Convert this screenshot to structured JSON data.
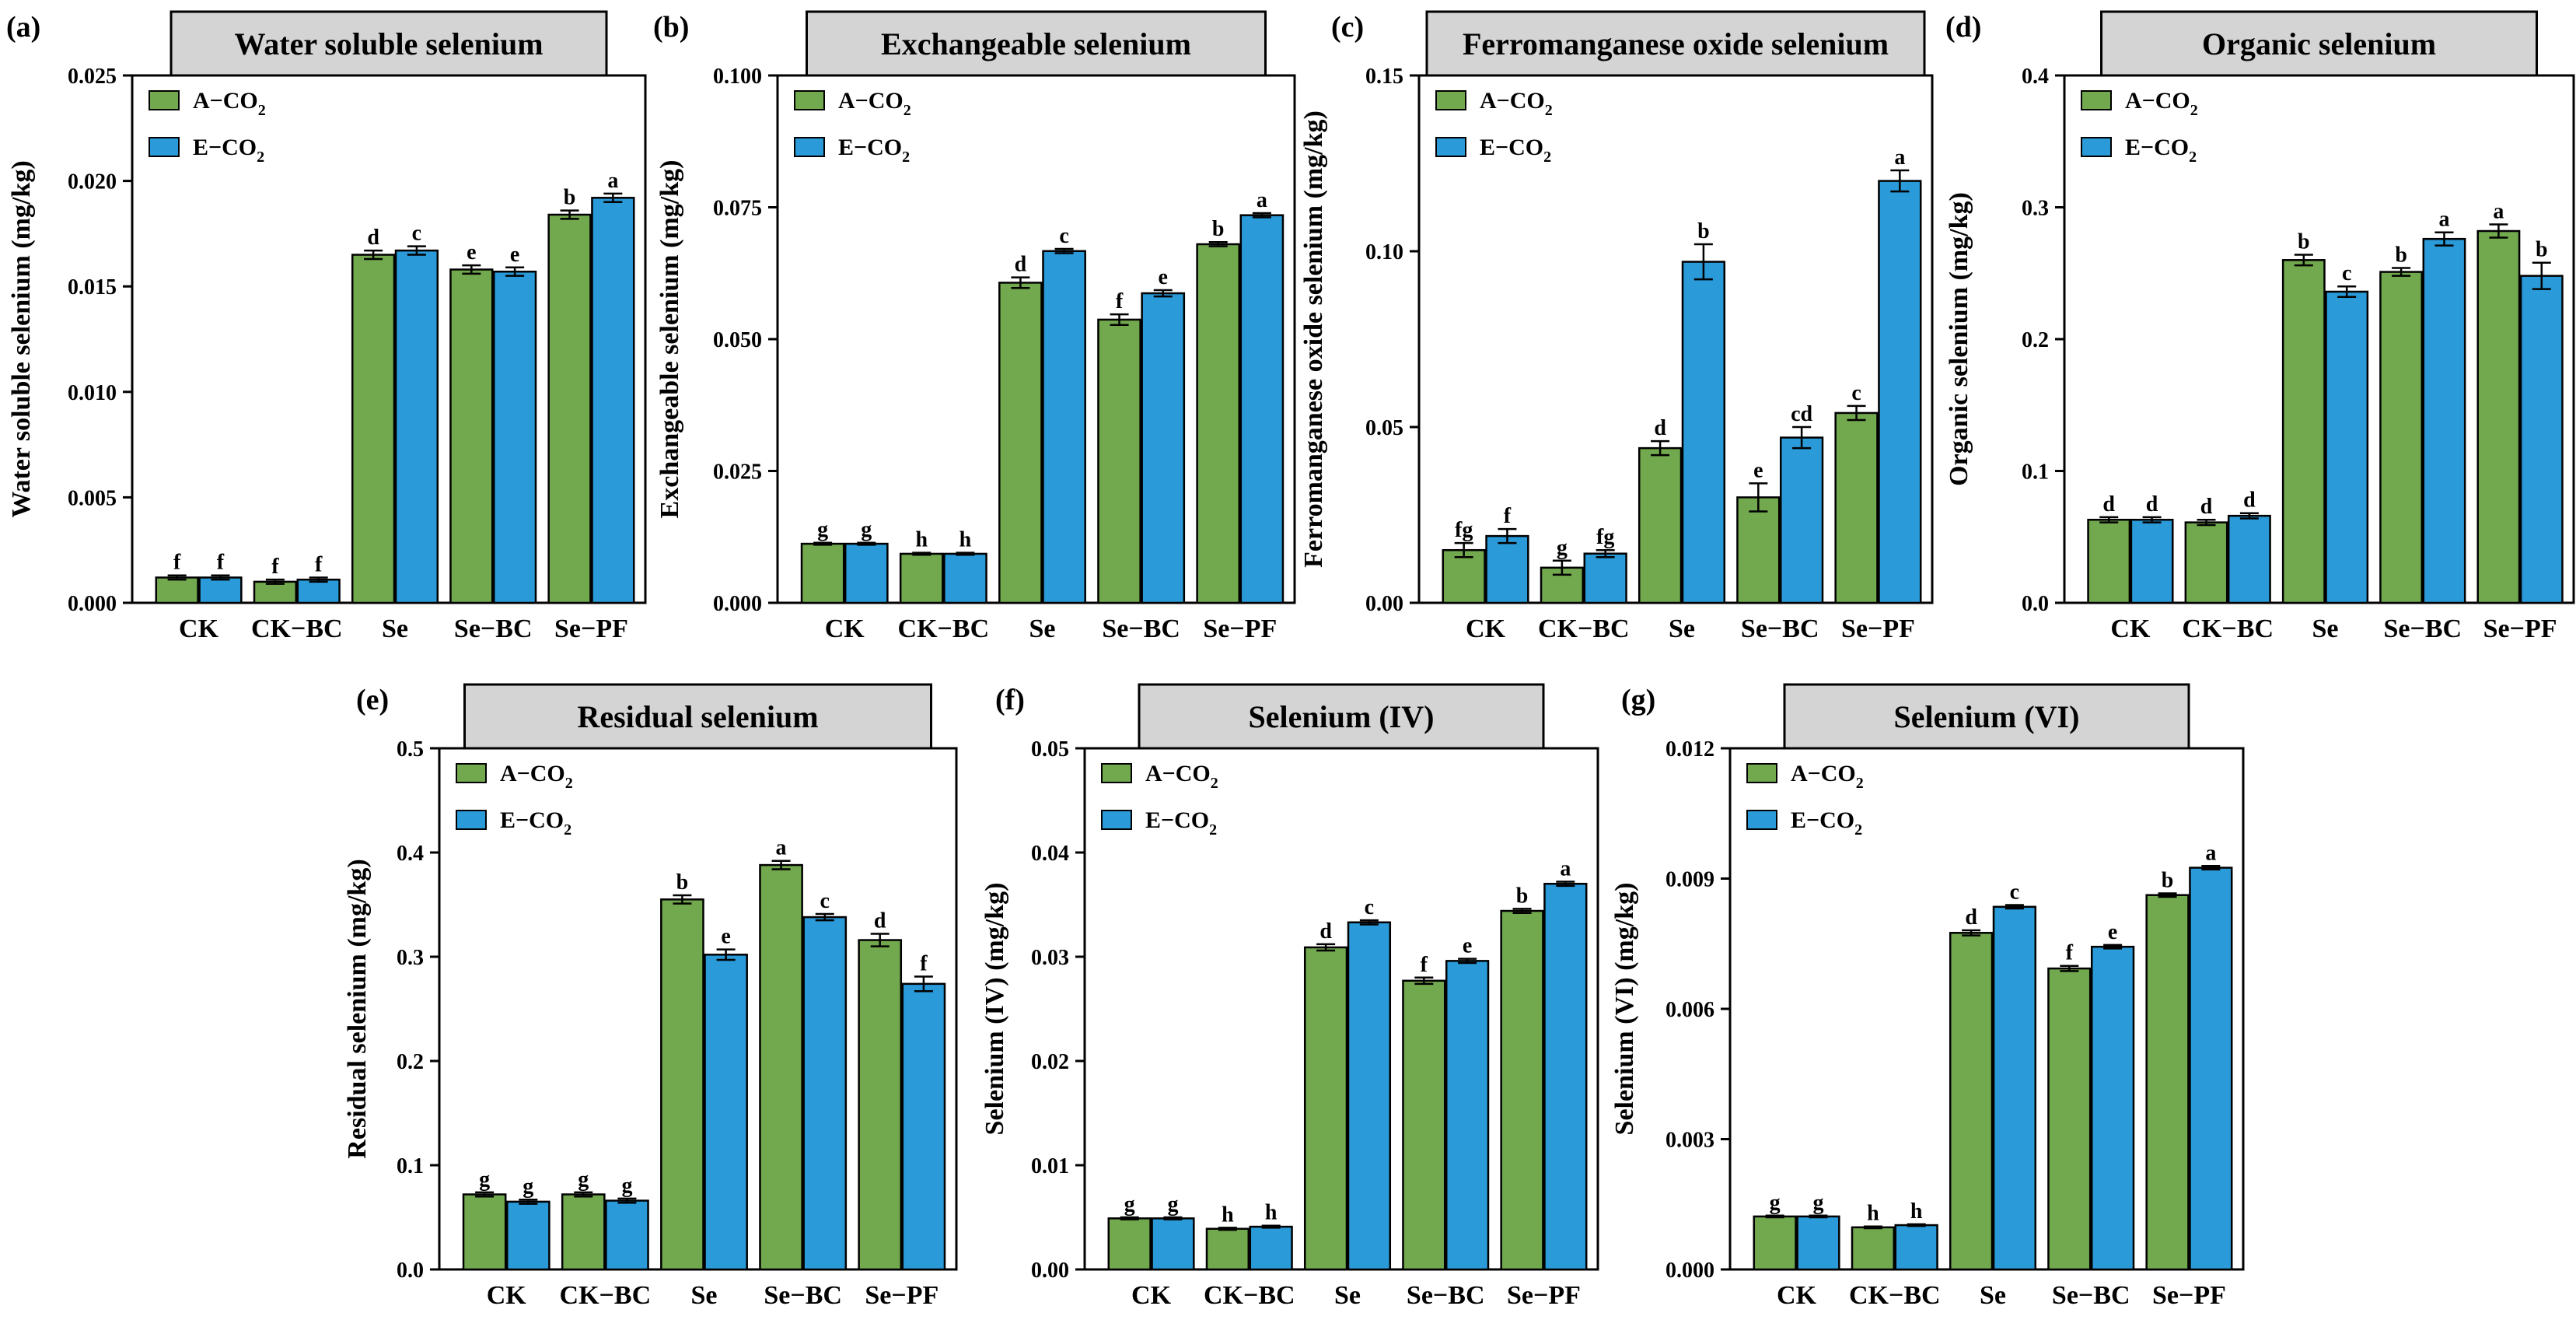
{
  "colors": {
    "a_co2": "#72a84e",
    "e_co2": "#2a9ad9",
    "title_box": "#d4d4d4"
  },
  "legend": {
    "a_main": "A−CO",
    "a_sub": "2",
    "e_main": "E−CO",
    "e_sub": "2"
  },
  "chart_data": [
    {
      "type": "bar",
      "letter": "(a)",
      "title": "Water soluble selenium",
      "ylabel": "Water soluble selenium (mg/kg)",
      "categories": [
        "CK",
        "CK−BC",
        "Se",
        "Se−BC",
        "Se−PF"
      ],
      "ylim": [
        0,
        0.025
      ],
      "yticks": [
        "0.000",
        "0.005",
        "0.010",
        "0.015",
        "0.020",
        "0.025"
      ],
      "series": [
        {
          "name": "A−CO2",
          "values": [
            0.0012,
            0.001,
            0.0165,
            0.0158,
            0.0184
          ],
          "errors": [
            0.0001,
            0.0001,
            0.0002,
            0.0002,
            0.0002
          ],
          "letters": [
            "f",
            "f",
            "d",
            "e",
            "b"
          ]
        },
        {
          "name": "E−CO2",
          "values": [
            0.0012,
            0.0011,
            0.0167,
            0.0157,
            0.0192
          ],
          "errors": [
            0.0001,
            0.0001,
            0.0002,
            0.0002,
            0.0002
          ],
          "letters": [
            "f",
            "f",
            "c",
            "e",
            "a"
          ]
        }
      ]
    },
    {
      "type": "bar",
      "letter": "(b)",
      "title": "Exchangeable selenium",
      "ylabel": "Exchangeable selenium (mg/kg)",
      "categories": [
        "CK",
        "CK−BC",
        "Se",
        "Se−BC",
        "Se−PF"
      ],
      "ylim": [
        0,
        0.1
      ],
      "yticks": [
        "0.000",
        "0.025",
        "0.050",
        "0.075",
        "0.100"
      ],
      "series": [
        {
          "name": "A−CO2",
          "values": [
            0.0112,
            0.0093,
            0.0607,
            0.0537,
            0.068
          ],
          "errors": [
            0.0002,
            0.0002,
            0.001,
            0.001,
            0.0004
          ],
          "letters": [
            "g",
            "h",
            "d",
            "f",
            "b"
          ]
        },
        {
          "name": "E−CO2",
          "values": [
            0.0112,
            0.0093,
            0.0667,
            0.0587,
            0.0735
          ],
          "errors": [
            0.0002,
            0.0002,
            0.0004,
            0.0006,
            0.0004
          ],
          "letters": [
            "g",
            "h",
            "c",
            "e",
            "a"
          ]
        }
      ]
    },
    {
      "type": "bar",
      "letter": "(c)",
      "title": "Ferromanganese oxide selenium",
      "ylabel": "Ferromanganese oxide selenium (mg/kg)",
      "categories": [
        "CK",
        "CK−BC",
        "Se",
        "Se−BC",
        "Se−PF"
      ],
      "ylim": [
        0,
        0.15
      ],
      "yticks": [
        "0.00",
        "0.05",
        "0.10",
        "0.15"
      ],
      "series": [
        {
          "name": "A−CO2",
          "values": [
            0.015,
            0.01,
            0.044,
            0.03,
            0.054
          ],
          "errors": [
            0.002,
            0.002,
            0.002,
            0.004,
            0.002
          ],
          "letters": [
            "fg",
            "g",
            "d",
            "e",
            "c"
          ]
        },
        {
          "name": "E−CO2",
          "values": [
            0.019,
            0.014,
            0.097,
            0.047,
            0.12
          ],
          "errors": [
            0.002,
            0.001,
            0.005,
            0.003,
            0.003
          ],
          "letters": [
            "f",
            "fg",
            "b",
            "cd",
            "a"
          ]
        }
      ]
    },
    {
      "type": "bar",
      "letter": "(d)",
      "title": "Organic selenium",
      "ylabel": "Organic selenium (mg/kg)",
      "categories": [
        "CK",
        "CK−BC",
        "Se",
        "Se−BC",
        "Se−PF"
      ],
      "ylim": [
        0,
        0.4
      ],
      "yticks": [
        "0.0",
        "0.1",
        "0.2",
        "0.3",
        "0.4"
      ],
      "series": [
        {
          "name": "A−CO2",
          "values": [
            0.063,
            0.061,
            0.26,
            0.251,
            0.282
          ],
          "errors": [
            0.002,
            0.002,
            0.004,
            0.003,
            0.005
          ],
          "letters": [
            "d",
            "d",
            "b",
            "b",
            "a"
          ]
        },
        {
          "name": "E−CO2",
          "values": [
            0.063,
            0.066,
            0.236,
            0.276,
            0.248
          ],
          "errors": [
            0.002,
            0.002,
            0.004,
            0.005,
            0.01
          ],
          "letters": [
            "d",
            "d",
            "c",
            "a",
            "b"
          ]
        }
      ]
    },
    {
      "type": "bar",
      "letter": "(e)",
      "title": "Residual selenium",
      "ylabel": "Residual selenium (mg/kg)",
      "categories": [
        "CK",
        "CK−BC",
        "Se",
        "Se−BC",
        "Se−PF"
      ],
      "ylim": [
        0,
        0.5
      ],
      "yticks": [
        "0.0",
        "0.1",
        "0.2",
        "0.3",
        "0.4",
        "0.5"
      ],
      "series": [
        {
          "name": "A−CO2",
          "values": [
            0.072,
            0.072,
            0.355,
            0.388,
            0.316
          ],
          "errors": [
            0.002,
            0.002,
            0.004,
            0.004,
            0.006
          ],
          "letters": [
            "g",
            "g",
            "b",
            "a",
            "d"
          ]
        },
        {
          "name": "E−CO2",
          "values": [
            0.065,
            0.066,
            0.302,
            0.338,
            0.274
          ],
          "errors": [
            0.002,
            0.002,
            0.005,
            0.003,
            0.007
          ],
          "letters": [
            "g",
            "g",
            "e",
            "c",
            "f"
          ]
        }
      ]
    },
    {
      "type": "bar",
      "letter": "(f)",
      "title": "Selenium (IV)",
      "ylabel": "Selenium (IV)  (mg/kg)",
      "categories": [
        "CK",
        "CK−BC",
        "Se",
        "Se−BC",
        "Se−PF"
      ],
      "ylim": [
        0,
        0.05
      ],
      "yticks": [
        "0.00",
        "0.01",
        "0.02",
        "0.03",
        "0.04",
        "0.05"
      ],
      "series": [
        {
          "name": "A−CO2",
          "values": [
            0.0049,
            0.0039,
            0.0309,
            0.0277,
            0.0344
          ],
          "errors": [
            0.0001,
            0.0001,
            0.0003,
            0.0003,
            0.0002
          ],
          "letters": [
            "g",
            "h",
            "d",
            "f",
            "b"
          ]
        },
        {
          "name": "E−CO2",
          "values": [
            0.0049,
            0.0041,
            0.0333,
            0.0296,
            0.037
          ],
          "errors": [
            0.0001,
            0.0001,
            0.0002,
            0.0002,
            0.0002
          ],
          "letters": [
            "g",
            "h",
            "c",
            "e",
            "a"
          ]
        }
      ]
    },
    {
      "type": "bar",
      "letter": "(g)",
      "title": "Selenium (VI)",
      "ylabel": "Selenium (VI)  (mg/kg)",
      "categories": [
        "CK",
        "CK−BC",
        "Se",
        "Se−BC",
        "Se−PF"
      ],
      "ylim": [
        0,
        0.012
      ],
      "yticks": [
        "0.000",
        "0.003",
        "0.006",
        "0.009",
        "0.012"
      ],
      "series": [
        {
          "name": "A−CO2",
          "values": [
            0.00122,
            0.00097,
            0.00775,
            0.00693,
            0.00862
          ],
          "errors": [
            2e-05,
            2e-05,
            6e-05,
            6e-05,
            4e-05
          ],
          "letters": [
            "g",
            "h",
            "d",
            "f",
            "b"
          ]
        },
        {
          "name": "E−CO2",
          "values": [
            0.00122,
            0.00102,
            0.00835,
            0.00743,
            0.00925
          ],
          "errors": [
            2e-05,
            2e-05,
            4e-05,
            4e-05,
            4e-05
          ],
          "letters": [
            "g",
            "h",
            "c",
            "e",
            "a"
          ]
        }
      ]
    }
  ]
}
